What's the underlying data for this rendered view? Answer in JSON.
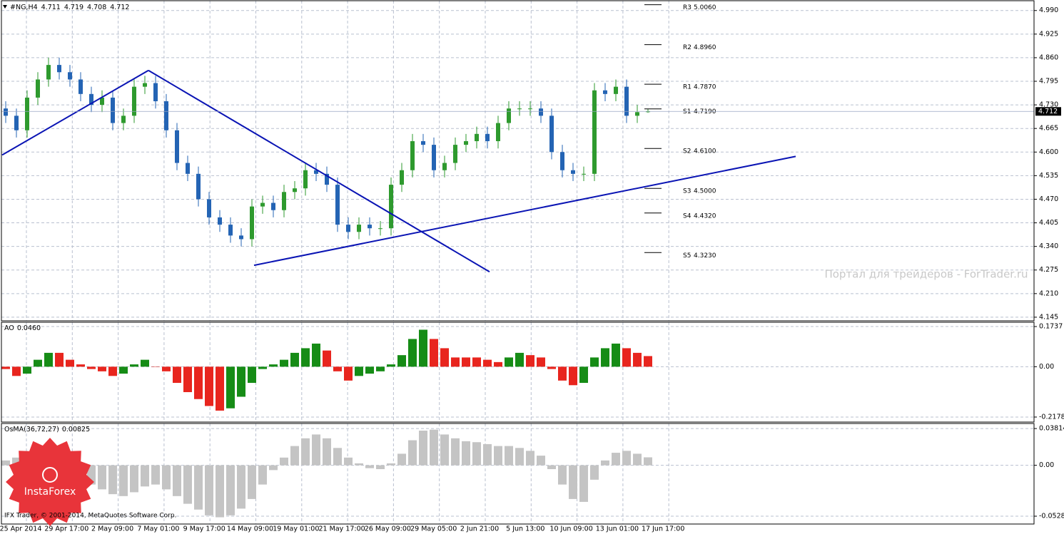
{
  "chart_data": [
    {
      "type": "candlestick",
      "title": "#NG,H4",
      "open": [
        4.72,
        4.7,
        4.66,
        4.75,
        4.8,
        4.84,
        4.82,
        4.8,
        4.76,
        4.73,
        4.75,
        4.68,
        4.7,
        4.78,
        4.79,
        4.74,
        4.66,
        4.57,
        4.54,
        4.47,
        4.42,
        4.4,
        4.37,
        4.36,
        4.45,
        4.46,
        4.44,
        4.49,
        4.5,
        4.55,
        4.54,
        4.51,
        4.4,
        4.38,
        4.4,
        4.39,
        4.39,
        4.51,
        4.55,
        4.63,
        4.62,
        4.55,
        4.57,
        4.62,
        4.63,
        4.65,
        4.63,
        4.68,
        4.72,
        4.72,
        4.72,
        4.7,
        4.6,
        4.55,
        4.54,
        4.54,
        4.77,
        4.76,
        4.78,
        4.7,
        4.711
      ],
      "high": [
        4.74,
        4.72,
        4.77,
        4.82,
        4.86,
        4.86,
        4.84,
        4.82,
        4.78,
        4.77,
        4.77,
        4.72,
        4.8,
        4.81,
        4.81,
        4.76,
        4.68,
        4.59,
        4.56,
        4.49,
        4.44,
        4.42,
        4.39,
        4.47,
        4.48,
        4.48,
        4.51,
        4.52,
        4.57,
        4.57,
        4.56,
        4.53,
        4.42,
        4.42,
        4.42,
        4.41,
        4.53,
        4.57,
        4.65,
        4.65,
        4.64,
        4.59,
        4.64,
        4.65,
        4.67,
        4.67,
        4.7,
        4.74,
        4.74,
        4.74,
        4.74,
        4.72,
        4.62,
        4.57,
        4.56,
        4.79,
        4.79,
        4.8,
        4.8,
        4.73,
        4.719
      ],
      "low": [
        4.68,
        4.64,
        4.64,
        4.73,
        4.78,
        4.8,
        4.78,
        4.74,
        4.71,
        4.71,
        4.66,
        4.66,
        4.68,
        4.76,
        4.72,
        4.64,
        4.55,
        4.52,
        4.45,
        4.4,
        4.38,
        4.35,
        4.34,
        4.34,
        4.43,
        4.42,
        4.42,
        4.47,
        4.48,
        4.52,
        4.49,
        4.38,
        4.36,
        4.36,
        4.37,
        4.37,
        4.37,
        4.49,
        4.53,
        4.6,
        4.53,
        4.53,
        4.55,
        4.6,
        4.61,
        4.61,
        4.61,
        4.66,
        4.7,
        4.7,
        4.68,
        4.58,
        4.53,
        4.52,
        4.52,
        4.52,
        4.74,
        4.74,
        4.68,
        4.68,
        4.708
      ],
      "close": [
        4.7,
        4.66,
        4.75,
        4.8,
        4.84,
        4.82,
        4.8,
        4.76,
        4.73,
        4.75,
        4.68,
        4.7,
        4.78,
        4.79,
        4.74,
        4.66,
        4.57,
        4.54,
        4.47,
        4.42,
        4.4,
        4.37,
        4.36,
        4.45,
        4.46,
        4.44,
        4.49,
        4.5,
        4.55,
        4.54,
        4.51,
        4.4,
        4.38,
        4.4,
        4.39,
        4.39,
        4.51,
        4.55,
        4.63,
        4.62,
        4.55,
        4.57,
        4.62,
        4.63,
        4.65,
        4.63,
        4.68,
        4.72,
        4.72,
        4.72,
        4.7,
        4.6,
        4.55,
        4.54,
        4.54,
        4.77,
        4.76,
        4.78,
        4.7,
        4.71,
        4.712
      ],
      "up_color": "#2e9a2e",
      "down_color": "#2464b4",
      "ylim": [
        4.135,
        5.017
      ],
      "yticks": [
        {
          "value": 4.99,
          "label": "4.990"
        },
        {
          "value": 4.925,
          "label": "4.925"
        },
        {
          "value": 4.86,
          "label": "4.860"
        },
        {
          "value": 4.795,
          "label": "4.795"
        },
        {
          "value": 4.73,
          "label": "4.730"
        },
        {
          "value": 4.665,
          "label": "4.665"
        },
        {
          "value": 4.6,
          "label": "4.600"
        },
        {
          "value": 4.535,
          "label": "4.535"
        },
        {
          "value": 4.47,
          "label": "4.470"
        },
        {
          "value": 4.405,
          "label": "4.405"
        },
        {
          "value": 4.34,
          "label": "4.340"
        },
        {
          "value": 4.275,
          "label": "4.275"
        },
        {
          "value": 4.21,
          "label": "4.210"
        },
        {
          "value": 4.145,
          "label": "4.145"
        }
      ],
      "grid": true,
      "xtick_labels": [
        "25 Apr 2014",
        "29 Apr 17:00",
        "2 May 09:00",
        "7 May 01:00",
        "9 May 17:00",
        "14 May 09:00",
        "19 May 01:00",
        "21 May 17:00",
        "26 May 09:00",
        "29 May 05:00",
        "2 Jun 21:00",
        "5 Jun 13:00",
        "10 Jun 09:00",
        "13 Jun 01:00",
        "17 Jun 17:00"
      ],
      "pivots": [
        {
          "name": "R3",
          "value": 5.006,
          "label": "5.0060"
        },
        {
          "name": "R2",
          "value": 4.896,
          "label": "4.8960"
        },
        {
          "name": "R1",
          "value": 4.787,
          "label": "4.7870"
        },
        {
          "name": "S1",
          "value": 4.719,
          "label": "4.7190"
        },
        {
          "name": "S2",
          "value": 4.61,
          "label": "4.6100"
        },
        {
          "name": "S3",
          "value": 4.5,
          "label": "4.5000"
        },
        {
          "name": "S4",
          "value": 4.432,
          "label": "4.4320"
        },
        {
          "name": "S5",
          "value": 4.323,
          "label": "4.3230"
        }
      ],
      "trendlines": [
        {
          "from": 4.592,
          "to": 4.825
        },
        {
          "from": 4.825,
          "to": 4.27
        },
        {
          "from": 4.288,
          "to": 4.588
        }
      ],
      "trendline_color": "#0a14b4"
    },
    {
      "type": "bar",
      "name": "AO",
      "value": 0.046,
      "value_label": "0.0460",
      "values": [
        -0.01,
        -0.04,
        -0.03,
        0.03,
        0.06,
        0.06,
        0.03,
        0.01,
        -0.01,
        -0.02,
        -0.04,
        -0.03,
        0.01,
        0.03,
        0.0,
        -0.02,
        -0.07,
        -0.11,
        -0.14,
        -0.17,
        -0.19,
        -0.18,
        -0.13,
        -0.07,
        -0.01,
        0.01,
        0.03,
        0.06,
        0.08,
        0.1,
        0.07,
        -0.02,
        -0.06,
        -0.04,
        -0.03,
        -0.02,
        0.01,
        0.05,
        0.12,
        0.16,
        0.12,
        0.08,
        0.04,
        0.04,
        0.04,
        0.03,
        0.02,
        0.04,
        0.06,
        0.05,
        0.04,
        -0.01,
        -0.06,
        -0.08,
        -0.07,
        0.04,
        0.08,
        0.1,
        0.08,
        0.06,
        0.046
      ],
      "up_color": "#168c16",
      "down_color": "#e8251e",
      "ylim": [
        -0.2395,
        0.1923
      ],
      "yticks": [
        0.1737,
        {
          "value": 0,
          "label": "0.00"
        },
        -0.2178
      ]
    },
    {
      "type": "bar",
      "name": "OsMA(36,72,27)",
      "value": 0.00825,
      "values": [
        0.005,
        0.008,
        0.005,
        0.003,
        0.0,
        -0.005,
        -0.01,
        -0.015,
        -0.02,
        -0.025,
        -0.03,
        -0.032,
        -0.028,
        -0.022,
        -0.02,
        -0.025,
        -0.032,
        -0.04,
        -0.046,
        -0.052,
        -0.054,
        -0.052,
        -0.045,
        -0.035,
        -0.02,
        -0.005,
        0.008,
        0.02,
        0.028,
        0.032,
        0.028,
        0.018,
        0.008,
        0.002,
        -0.003,
        -0.004,
        0.002,
        0.012,
        0.026,
        0.036,
        0.037,
        0.032,
        0.028,
        0.025,
        0.024,
        0.022,
        0.02,
        0.02,
        0.018,
        0.015,
        0.01,
        -0.004,
        -0.02,
        -0.035,
        -0.038,
        -0.015,
        0.005,
        0.013,
        0.015,
        0.012,
        0.00825
      ],
      "color": "#c4c4c4",
      "ylim": [
        -0.061,
        0.0434
      ],
      "yticks": [
        0.03814,
        {
          "value": 0,
          "label": "0.00"
        },
        -0.05287
      ]
    }
  ],
  "watermark": "Портал для трейдеров - ForTrader.ru",
  "copyright": "IFX Trader, © 2001-2014, MetaQuotes Software Corp.",
  "logo": "InstaForex"
}
